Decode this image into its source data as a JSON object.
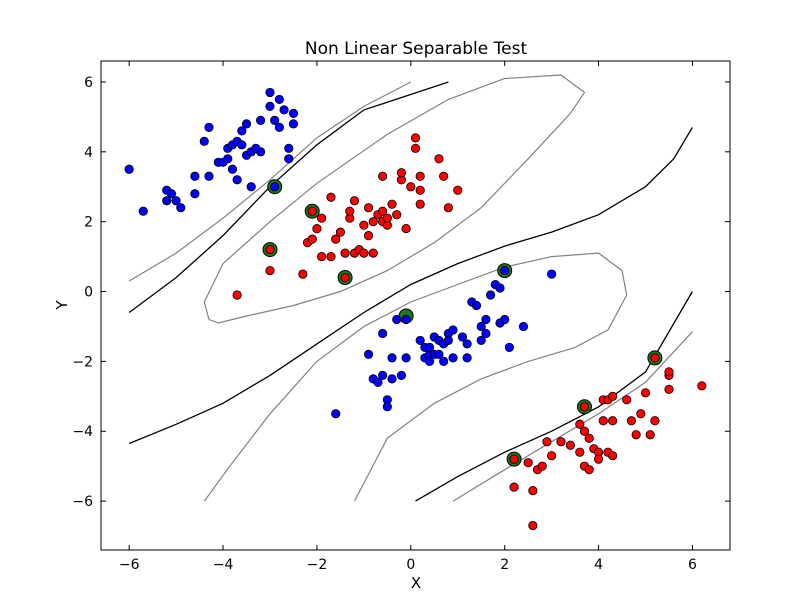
{
  "chart_data": {
    "type": "scatter",
    "title": "Non Linear Separable Test",
    "xlabel": "X",
    "ylabel": "Y",
    "xlim": [
      -6.6,
      6.8
    ],
    "ylim": [
      -7.4,
      6.6
    ],
    "xticks": [
      -6,
      -4,
      -2,
      0,
      2,
      4,
      6
    ],
    "yticks": [
      -6,
      -4,
      -2,
      0,
      2,
      4,
      6
    ],
    "grid": false,
    "colors": {
      "class_blue": "#0000ff",
      "class_red": "#ff0000",
      "support_vector": "#1a7a1a",
      "boundary": "#000000",
      "margin": "#808080"
    },
    "series": [
      {
        "class": "blue",
        "points": [
          [
            -6.0,
            3.5
          ],
          [
            -5.7,
            2.3
          ],
          [
            -5.2,
            2.9
          ],
          [
            -5.1,
            2.8
          ],
          [
            -5.2,
            2.6
          ],
          [
            -5.0,
            2.6
          ],
          [
            -4.9,
            2.4
          ],
          [
            -4.6,
            3.3
          ],
          [
            -4.6,
            2.8
          ],
          [
            -4.4,
            4.3
          ],
          [
            -4.3,
            4.7
          ],
          [
            -4.3,
            3.3
          ],
          [
            -4.1,
            3.7
          ],
          [
            -4.0,
            3.7
          ],
          [
            -3.9,
            4.1
          ],
          [
            -3.9,
            3.8
          ],
          [
            -3.8,
            4.2
          ],
          [
            -3.8,
            3.5
          ],
          [
            -3.7,
            4.3
          ],
          [
            -3.7,
            3.2
          ],
          [
            -3.6,
            4.6
          ],
          [
            -3.5,
            4.8
          ],
          [
            -3.5,
            3.9
          ],
          [
            -3.4,
            4.0
          ],
          [
            -3.4,
            3.0
          ],
          [
            -3.2,
            4.0
          ],
          [
            -3.2,
            4.9
          ],
          [
            -3.0,
            5.7
          ],
          [
            -3.0,
            5.3
          ],
          [
            -2.9,
            4.9
          ],
          [
            -2.8,
            5.5
          ],
          [
            -2.8,
            4.7
          ],
          [
            -2.7,
            5.2
          ],
          [
            -2.6,
            4.1
          ],
          [
            -2.5,
            4.8
          ],
          [
            -2.5,
            5.1
          ],
          [
            -2.6,
            3.8
          ],
          [
            -2.9,
            3.0
          ],
          [
            -3.3,
            4.1
          ],
          [
            -3.6,
            4.2
          ],
          [
            -1.6,
            -3.5
          ],
          [
            -0.9,
            -1.8
          ],
          [
            -0.8,
            -2.5
          ],
          [
            -0.7,
            -2.6
          ],
          [
            -0.6,
            -1.2
          ],
          [
            -0.6,
            -2.4
          ],
          [
            -0.5,
            -3.1
          ],
          [
            -0.5,
            -3.3
          ],
          [
            -0.4,
            -2.5
          ],
          [
            -0.4,
            -1.9
          ],
          [
            -0.3,
            -0.8
          ],
          [
            -0.2,
            -2.4
          ],
          [
            -0.1,
            -1.9
          ],
          [
            0.2,
            -1.4
          ],
          [
            0.3,
            -1.6
          ],
          [
            0.3,
            -1.9
          ],
          [
            0.4,
            -1.8
          ],
          [
            0.4,
            -2.0
          ],
          [
            0.5,
            -1.3
          ],
          [
            0.5,
            -1.8
          ],
          [
            0.6,
            -1.4
          ],
          [
            0.6,
            -1.8
          ],
          [
            0.7,
            -2.0
          ],
          [
            0.7,
            -1.5
          ],
          [
            0.8,
            -1.2
          ],
          [
            0.8,
            -1.4
          ],
          [
            0.9,
            -1.9
          ],
          [
            0.9,
            -1.1
          ],
          [
            1.1,
            -1.3
          ],
          [
            1.2,
            -1.5
          ],
          [
            1.2,
            -1.9
          ],
          [
            1.3,
            -0.3
          ],
          [
            1.4,
            -0.4
          ],
          [
            1.5,
            -1.0
          ],
          [
            1.5,
            -1.4
          ],
          [
            1.6,
            -1.2
          ],
          [
            1.6,
            -0.8
          ],
          [
            1.7,
            -0.1
          ],
          [
            1.8,
            0.2
          ],
          [
            1.9,
            -0.9
          ],
          [
            1.9,
            0.1
          ],
          [
            2.0,
            0.6
          ],
          [
            2.1,
            -1.6
          ],
          [
            2.0,
            -0.8
          ],
          [
            2.4,
            -1.0
          ],
          [
            3.0,
            0.5
          ],
          [
            -0.1,
            -0.8
          ],
          [
            0.4,
            -1.6
          ]
        ]
      },
      {
        "class": "red",
        "points": [
          [
            -3.7,
            -0.1
          ],
          [
            -3.0,
            0.6
          ],
          [
            -3.0,
            1.2
          ],
          [
            -2.3,
            0.5
          ],
          [
            -2.2,
            1.4
          ],
          [
            -2.1,
            1.5
          ],
          [
            -2.1,
            2.3
          ],
          [
            -2.0,
            1.8
          ],
          [
            -1.9,
            2.1
          ],
          [
            -1.9,
            1.0
          ],
          [
            -1.7,
            1.0
          ],
          [
            -1.6,
            1.5
          ],
          [
            -1.5,
            1.7
          ],
          [
            -1.4,
            1.1
          ],
          [
            -1.3,
            2.1
          ],
          [
            -1.3,
            2.3
          ],
          [
            -1.2,
            1.1
          ],
          [
            -1.1,
            1.2
          ],
          [
            -1.0,
            1.9
          ],
          [
            -1.2,
            2.6
          ],
          [
            -0.9,
            2.4
          ],
          [
            -0.9,
            1.6
          ],
          [
            -0.8,
            1.1
          ],
          [
            -0.8,
            2.0
          ],
          [
            -0.7,
            2.2
          ],
          [
            -0.6,
            2.0
          ],
          [
            -0.6,
            3.3
          ],
          [
            -0.6,
            2.3
          ],
          [
            -0.5,
            1.9
          ],
          [
            -0.5,
            2.1
          ],
          [
            -0.4,
            2.5
          ],
          [
            -0.3,
            2.2
          ],
          [
            -0.2,
            3.2
          ],
          [
            -0.2,
            3.4
          ],
          [
            -0.1,
            1.8
          ],
          [
            0.0,
            3.0
          ],
          [
            0.1,
            4.4
          ],
          [
            0.1,
            4.1
          ],
          [
            0.2,
            3.3
          ],
          [
            0.2,
            2.9
          ],
          [
            0.2,
            2.5
          ],
          [
            0.6,
            3.8
          ],
          [
            0.7,
            3.3
          ],
          [
            0.8,
            2.4
          ],
          [
            1.0,
            2.9
          ],
          [
            -1.4,
            0.4
          ],
          [
            -1.7,
            2.7
          ],
          [
            -1.0,
            1.1
          ],
          [
            2.2,
            -4.8
          ],
          [
            2.2,
            -5.6
          ],
          [
            2.5,
            -4.9
          ],
          [
            2.6,
            -5.7
          ],
          [
            2.6,
            -6.7
          ],
          [
            2.7,
            -5.1
          ],
          [
            2.8,
            -5.0
          ],
          [
            2.9,
            -4.3
          ],
          [
            3.0,
            -4.7
          ],
          [
            3.2,
            -4.3
          ],
          [
            3.4,
            -4.4
          ],
          [
            3.6,
            -3.8
          ],
          [
            3.6,
            -4.6
          ],
          [
            3.7,
            -4.0
          ],
          [
            3.7,
            -5.0
          ],
          [
            3.8,
            -4.2
          ],
          [
            3.8,
            -5.1
          ],
          [
            3.9,
            -4.5
          ],
          [
            4.0,
            -4.6
          ],
          [
            4.0,
            -4.8
          ],
          [
            4.1,
            -3.1
          ],
          [
            4.1,
            -3.7
          ],
          [
            4.2,
            -3.1
          ],
          [
            4.2,
            -4.6
          ],
          [
            4.3,
            -3.0
          ],
          [
            4.3,
            -4.7
          ],
          [
            4.3,
            -3.7
          ],
          [
            4.6,
            -3.1
          ],
          [
            4.7,
            -3.7
          ],
          [
            4.8,
            -4.1
          ],
          [
            4.9,
            -3.5
          ],
          [
            5.0,
            -2.9
          ],
          [
            5.1,
            -4.1
          ],
          [
            5.2,
            -3.7
          ],
          [
            5.2,
            -1.9
          ],
          [
            5.5,
            -2.4
          ],
          [
            5.5,
            -2.8
          ],
          [
            5.5,
            -2.3
          ],
          [
            6.2,
            -2.7
          ],
          [
            3.7,
            -3.3
          ]
        ]
      }
    ],
    "support_vectors": [
      [
        -2.9,
        3.0
      ],
      [
        -2.1,
        2.3
      ],
      [
        -3.0,
        1.2
      ],
      [
        -1.4,
        0.4
      ],
      [
        -0.1,
        -0.7
      ],
      [
        2.0,
        0.6
      ],
      [
        5.2,
        -1.9
      ],
      [
        3.7,
        -3.3
      ],
      [
        2.2,
        -4.8
      ]
    ],
    "contours": {
      "boundary": [
        [
          [
            -6.0,
            -0.6
          ],
          [
            -5.0,
            0.4
          ],
          [
            -4.0,
            1.6
          ],
          [
            -3.0,
            3.0
          ],
          [
            -2.0,
            4.2
          ],
          [
            -1.0,
            5.2
          ],
          [
            0.8,
            6.0
          ]
        ],
        [
          [
            -6.0,
            -4.35
          ],
          [
            -5.0,
            -3.8
          ],
          [
            -4.0,
            -3.2
          ],
          [
            -3.0,
            -2.4
          ],
          [
            -2.0,
            -1.5
          ],
          [
            -1.0,
            -0.6
          ],
          [
            0.0,
            0.2
          ],
          [
            1.0,
            0.8
          ],
          [
            2.0,
            1.3
          ],
          [
            3.0,
            1.7
          ],
          [
            4.0,
            2.2
          ],
          [
            5.0,
            3.0
          ],
          [
            5.6,
            3.8
          ],
          [
            6.0,
            4.7
          ]
        ],
        [
          [
            0.1,
            -6.0
          ],
          [
            1.0,
            -5.3
          ],
          [
            2.0,
            -4.6
          ],
          [
            3.0,
            -4.0
          ],
          [
            4.0,
            -3.3
          ],
          [
            5.0,
            -2.3
          ],
          [
            6.0,
            -0.0
          ]
        ]
      ],
      "margin": [
        [
          [
            -6.0,
            0.3
          ],
          [
            -5.0,
            1.1
          ],
          [
            -4.0,
            2.1
          ],
          [
            -3.0,
            3.2
          ],
          [
            -2.0,
            4.4
          ],
          [
            -1.0,
            5.3
          ],
          [
            0.0,
            6.0
          ]
        ],
        [
          [
            0.9,
            -6.0
          ],
          [
            2.0,
            -5.1
          ],
          [
            3.0,
            -4.3
          ],
          [
            4.0,
            -3.5
          ],
          [
            5.0,
            -2.6
          ],
          [
            6.0,
            -1.15
          ]
        ],
        [
          [
            -4.3,
            -0.8
          ],
          [
            -4.1,
            -0.9
          ],
          [
            -3.5,
            -0.7
          ],
          [
            -2.5,
            -0.4
          ],
          [
            -1.5,
            0.0
          ],
          [
            -0.5,
            0.6
          ],
          [
            0.5,
            1.4
          ],
          [
            1.5,
            2.4
          ],
          [
            2.5,
            3.8
          ],
          [
            3.4,
            5.1
          ],
          [
            3.7,
            5.7
          ],
          [
            3.2,
            6.2
          ],
          [
            2.0,
            6.1
          ],
          [
            0.8,
            5.5
          ],
          [
            -0.5,
            4.5
          ],
          [
            -2.0,
            3.1
          ],
          [
            -3.0,
            2.0
          ],
          [
            -4.0,
            0.8
          ],
          [
            -4.4,
            -0.3
          ],
          [
            -4.3,
            -0.8
          ]
        ],
        [
          [
            -4.4,
            -6.0
          ],
          [
            -3.8,
            -4.9
          ],
          [
            -3.0,
            -3.5
          ],
          [
            -2.0,
            -2.0
          ],
          [
            -1.0,
            -1.0
          ],
          [
            0.0,
            -0.3
          ],
          [
            1.0,
            0.2
          ],
          [
            2.0,
            0.7
          ],
          [
            3.0,
            1.0
          ],
          [
            4.0,
            1.1
          ],
          [
            4.5,
            0.6
          ],
          [
            4.6,
            -0.1
          ],
          [
            4.2,
            -1.1
          ],
          [
            3.5,
            -1.6
          ],
          [
            2.5,
            -2.0
          ],
          [
            1.5,
            -2.5
          ],
          [
            0.5,
            -3.2
          ],
          [
            -0.5,
            -4.2
          ],
          [
            -1.2,
            -6.0
          ]
        ]
      ]
    }
  }
}
